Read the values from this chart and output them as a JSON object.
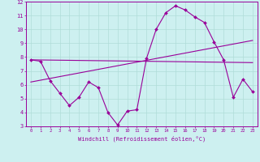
{
  "xlabel": "Windchill (Refroidissement éolien,°C)",
  "background_color": "#cdf0f0",
  "grid_color": "#b0dcd8",
  "line_color": "#990099",
  "x": [
    0,
    1,
    2,
    3,
    4,
    5,
    6,
    7,
    8,
    9,
    10,
    11,
    12,
    13,
    14,
    15,
    16,
    17,
    18,
    19,
    20,
    21,
    22,
    23
  ],
  "y_zigzag": [
    7.8,
    7.7,
    6.3,
    5.4,
    4.5,
    5.1,
    6.2,
    5.8,
    4.0,
    3.1,
    4.1,
    4.2,
    7.9,
    10.0,
    11.2,
    11.7,
    11.4,
    10.9,
    10.5,
    9.1,
    7.8,
    5.1,
    6.4,
    5.5
  ],
  "y_line1_start": 7.8,
  "y_line1_end": 7.6,
  "y_line2_start": 6.2,
  "y_line2_end": 9.2,
  "ylim": [
    3,
    12
  ],
  "xlim": [
    -0.5,
    23.5
  ]
}
